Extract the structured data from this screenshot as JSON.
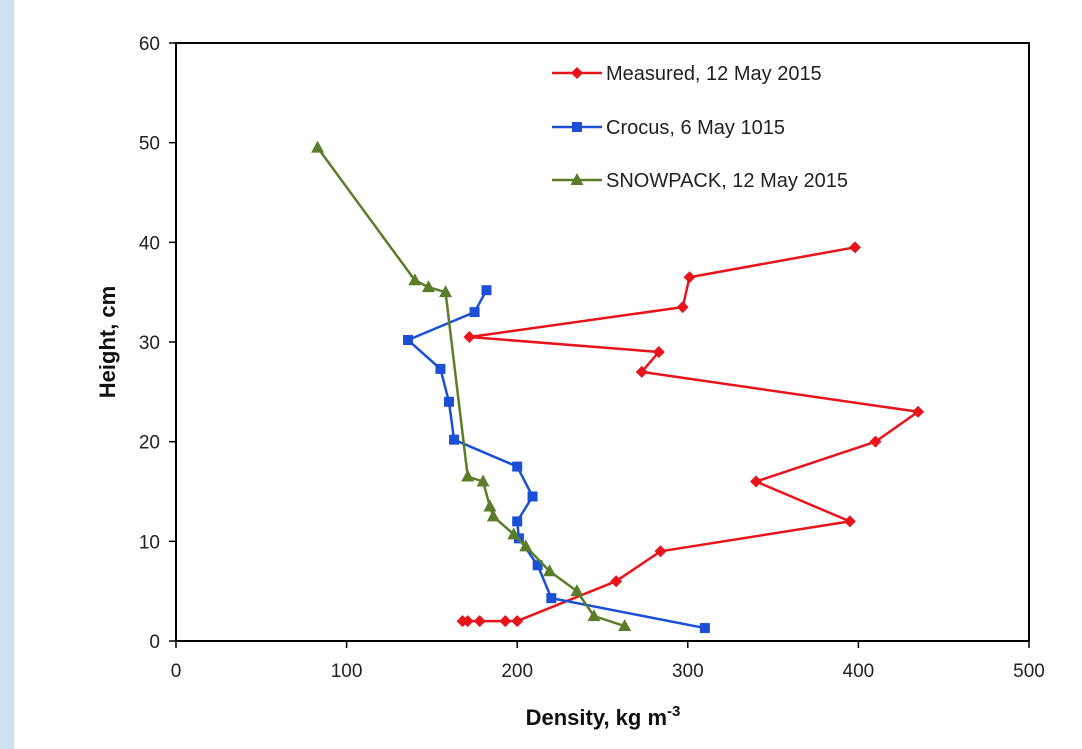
{
  "chart_data": {
    "type": "line",
    "xlabel": "Density, kg m",
    "xlabel_sup": "-3",
    "ylabel": "Height, cm",
    "xlim": [
      0,
      500
    ],
    "ylim": [
      0,
      60
    ],
    "x_ticks": [
      "0",
      "100",
      "200",
      "300",
      "400",
      "500"
    ],
    "y_ticks": [
      "0",
      "10",
      "20",
      "30",
      "40",
      "50",
      "60"
    ],
    "grid": false,
    "legend_position": "top-right",
    "series": [
      {
        "name": "Measured, 12 May 2015",
        "color": "#e8141b",
        "marker": "diamond",
        "x": [
          168,
          171,
          178,
          193,
          200,
          258,
          284,
          395,
          340,
          410,
          435,
          273,
          283,
          172,
          297,
          301,
          398
        ],
        "y": [
          2,
          2,
          2,
          2,
          2,
          6,
          9,
          12,
          16,
          20,
          23,
          27,
          29,
          30.5,
          33.5,
          36.5,
          39.5
        ]
      },
      {
        "name": "Crocus, 6 May 1015",
        "color": "#1a4fd6",
        "marker": "square",
        "x": [
          310,
          220,
          212,
          201,
          200,
          209,
          200,
          163,
          160,
          155,
          136,
          175,
          182
        ],
        "y": [
          1.3,
          4.3,
          7.6,
          10.3,
          12,
          14.5,
          17.5,
          20.2,
          24,
          27.3,
          30.2,
          33,
          35.2
        ]
      },
      {
        "name": "SNOWPACK, 12 May 2015",
        "color": "#5a7d2a",
        "marker": "triangle",
        "x": [
          263,
          245,
          235,
          219,
          205,
          198,
          186,
          184,
          180,
          171,
          158,
          148,
          140,
          83
        ],
        "y": [
          1.5,
          2.5,
          5,
          7,
          9.5,
          10.7,
          12.5,
          13.5,
          16,
          16.5,
          35,
          35.5,
          36.2,
          49.5
        ]
      }
    ]
  }
}
